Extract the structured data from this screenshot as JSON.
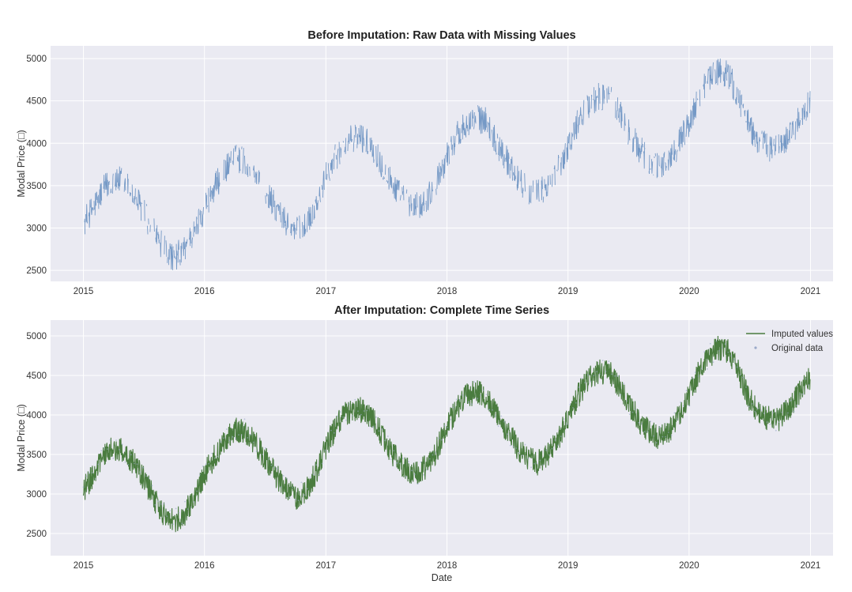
{
  "chart_data": [
    {
      "type": "line",
      "title": "Before Imputation: Raw Data with Missing Values",
      "xlabel": "",
      "ylabel": "Modal Price (□)",
      "x_ticks": [
        "2015",
        "2016",
        "2017",
        "2018",
        "2019",
        "2020",
        "2021"
      ],
      "y_ticks": [
        2500,
        3000,
        3500,
        4000,
        4500,
        5000
      ],
      "xlim": [
        "2014-09-24",
        "2021-03-10"
      ],
      "ylim": [
        2370,
        5150
      ],
      "grid": true,
      "legend": null,
      "series": [
        {
          "color": "#6f95c3",
          "style": "line with gaps at missing values",
          "x": [
            "2015-01-01",
            "2015-02-01",
            "2015-03-01",
            "2015-04-01",
            "2015-05-01",
            "2015-06-01",
            "2015-07-01",
            "2015-08-01",
            "2015-09-01",
            "2015-10-01",
            "2015-11-01",
            "2015-12-01",
            "2016-01-01",
            "2016-02-01",
            "2016-03-01",
            "2016-04-01",
            "2016-05-01",
            "2016-06-01",
            "2016-07-01",
            "2016-08-01",
            "2016-09-01",
            "2016-10-01",
            "2016-11-01",
            "2016-12-01",
            "2017-01-01",
            "2017-02-01",
            "2017-03-01",
            "2017-04-01",
            "2017-05-01",
            "2017-06-01",
            "2017-07-01",
            "2017-08-01",
            "2017-09-01",
            "2017-10-01",
            "2017-11-01",
            "2017-12-01",
            "2018-01-01",
            "2018-02-01",
            "2018-03-01",
            "2018-04-01",
            "2018-05-01",
            "2018-06-01",
            "2018-07-01",
            "2018-08-01",
            "2018-09-01",
            "2018-10-01",
            "2018-11-01",
            "2018-12-01",
            "2019-01-01",
            "2019-02-01",
            "2019-03-01",
            "2019-04-01",
            "2019-05-01",
            "2019-06-01",
            "2019-07-01",
            "2019-08-01",
            "2019-09-01",
            "2019-10-01",
            "2019-11-01",
            "2019-12-01",
            "2020-01-01",
            "2020-02-01",
            "2020-03-01",
            "2020-04-01",
            "2020-05-01",
            "2020-06-01",
            "2020-07-01",
            "2020-08-01",
            "2020-09-01",
            "2020-10-01",
            "2020-11-01",
            "2020-12-01",
            "2020-12-31"
          ],
          "values": [
            3050,
            3250,
            3450,
            3580,
            3550,
            3400,
            3200,
            2950,
            2750,
            2650,
            2750,
            2950,
            3250,
            3480,
            3680,
            3820,
            3800,
            3650,
            3450,
            3250,
            3080,
            2950,
            3050,
            3250,
            3600,
            3850,
            4000,
            4080,
            4050,
            3900,
            3650,
            3450,
            3300,
            3250,
            3350,
            3550,
            3850,
            4100,
            4250,
            4300,
            4250,
            4000,
            3800,
            3600,
            3450,
            3400,
            3500,
            3700,
            3950,
            4250,
            4450,
            4550,
            4550,
            4400,
            4150,
            3950,
            3800,
            3700,
            3800,
            4000,
            4250,
            4550,
            4750,
            4850,
            4800,
            4500,
            4200,
            4000,
            3950,
            3950,
            4100,
            4300,
            4480
          ]
        }
      ]
    },
    {
      "type": "line",
      "title": "After Imputation: Complete Time Series",
      "xlabel": "Date",
      "ylabel": "Modal Price (□)",
      "x_ticks": [
        "2015",
        "2016",
        "2017",
        "2018",
        "2019",
        "2020",
        "2021"
      ],
      "y_ticks": [
        2500,
        3000,
        3500,
        4000,
        4500,
        5000
      ],
      "xlim": [
        "2014-09-24",
        "2021-03-10"
      ],
      "ylim": [
        2220,
        5200
      ],
      "grid": true,
      "legend": "top-right",
      "series": [
        {
          "name": "Imputed values",
          "color": "#4a7c3f",
          "style": "line",
          "x": [
            "2015-01-01",
            "2015-02-01",
            "2015-03-01",
            "2015-04-01",
            "2015-05-01",
            "2015-06-01",
            "2015-07-01",
            "2015-08-01",
            "2015-09-01",
            "2015-10-01",
            "2015-11-01",
            "2015-12-01",
            "2016-01-01",
            "2016-02-01",
            "2016-03-01",
            "2016-04-01",
            "2016-05-01",
            "2016-06-01",
            "2016-07-01",
            "2016-08-01",
            "2016-09-01",
            "2016-10-01",
            "2016-11-01",
            "2016-12-01",
            "2017-01-01",
            "2017-02-01",
            "2017-03-01",
            "2017-04-01",
            "2017-05-01",
            "2017-06-01",
            "2017-07-01",
            "2017-08-01",
            "2017-09-01",
            "2017-10-01",
            "2017-11-01",
            "2017-12-01",
            "2018-01-01",
            "2018-02-01",
            "2018-03-01",
            "2018-04-01",
            "2018-05-01",
            "2018-06-01",
            "2018-07-01",
            "2018-08-01",
            "2018-09-01",
            "2018-10-01",
            "2018-11-01",
            "2018-12-01",
            "2019-01-01",
            "2019-02-01",
            "2019-03-01",
            "2019-04-01",
            "2019-05-01",
            "2019-06-01",
            "2019-07-01",
            "2019-08-01",
            "2019-09-01",
            "2019-10-01",
            "2019-11-01",
            "2019-12-01",
            "2020-01-01",
            "2020-02-01",
            "2020-03-01",
            "2020-04-01",
            "2020-05-01",
            "2020-06-01",
            "2020-07-01",
            "2020-08-01",
            "2020-09-01",
            "2020-10-01",
            "2020-11-01",
            "2020-12-01",
            "2020-12-31"
          ],
          "values": [
            3050,
            3250,
            3450,
            3580,
            3550,
            3400,
            3200,
            2950,
            2750,
            2650,
            2750,
            2950,
            3250,
            3480,
            3680,
            3820,
            3800,
            3650,
            3450,
            3250,
            3080,
            2950,
            3050,
            3250,
            3600,
            3850,
            4000,
            4080,
            4050,
            3900,
            3650,
            3450,
            3300,
            3250,
            3350,
            3550,
            3850,
            4100,
            4250,
            4300,
            4250,
            4000,
            3800,
            3600,
            3450,
            3400,
            3500,
            3700,
            3950,
            4250,
            4450,
            4550,
            4550,
            4400,
            4150,
            3950,
            3800,
            3700,
            3800,
            4000,
            4250,
            4550,
            4750,
            4850,
            4800,
            4500,
            4200,
            4000,
            3950,
            3950,
            4100,
            4300,
            4480
          ]
        },
        {
          "name": "Original data",
          "color": "#9aa9c9",
          "style": "markers",
          "same_values_as": "Imputed values"
        }
      ]
    }
  ]
}
